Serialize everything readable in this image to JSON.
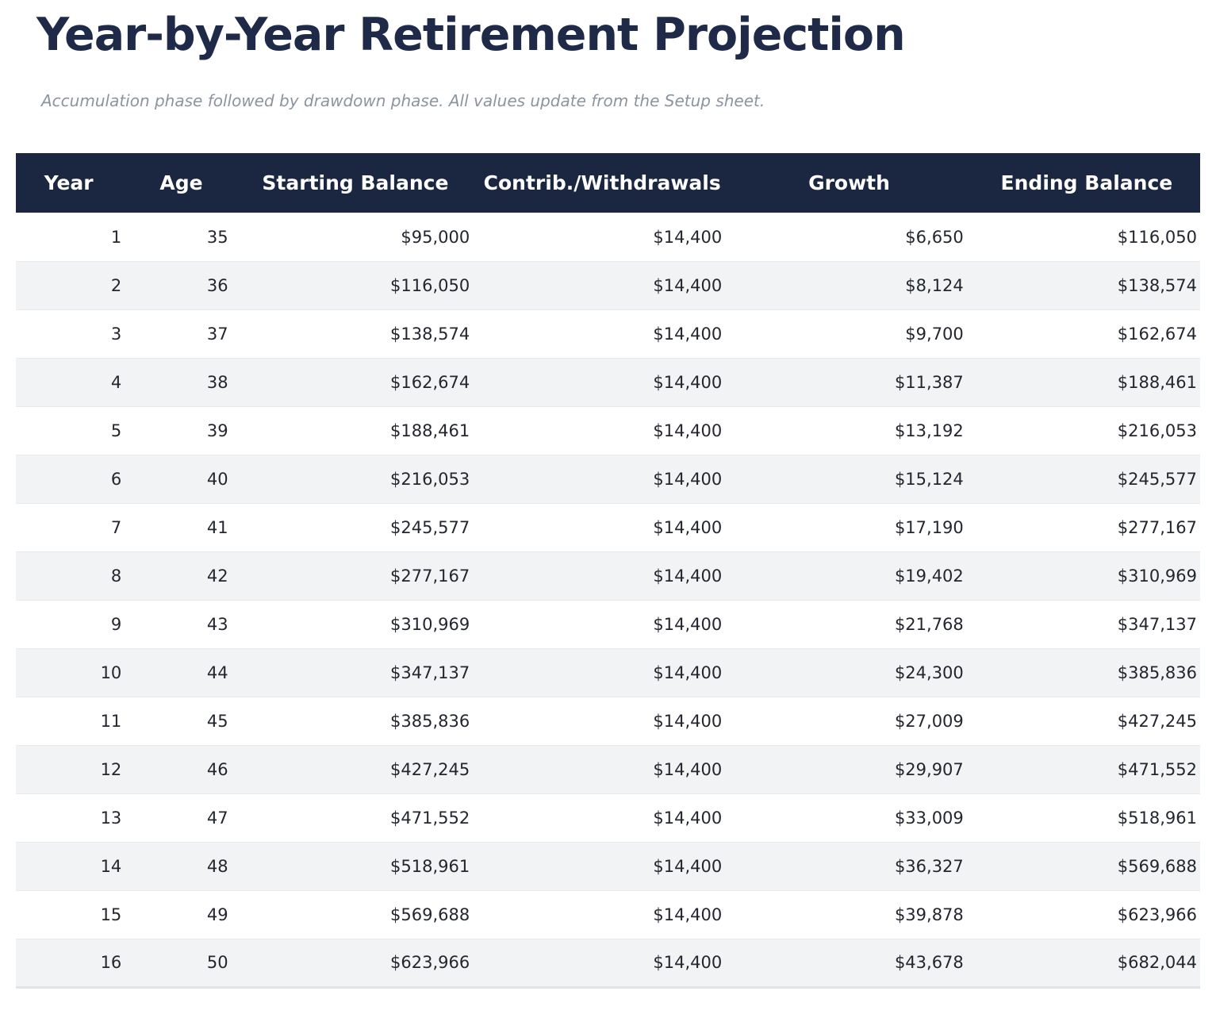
{
  "page": {
    "title": "Year-by-Year Retirement Projection",
    "subtitle": "Accumulation phase followed by drawdown phase. All values update from the Setup sheet."
  },
  "table": {
    "columns": [
      "Year",
      "Age",
      "Starting Balance",
      "Contrib./Withdrawals",
      "Growth",
      "Ending Balance"
    ],
    "rows": [
      [
        "1",
        "35",
        "$95,000",
        "$14,400",
        "$6,650",
        "$116,050"
      ],
      [
        "2",
        "36",
        "$116,050",
        "$14,400",
        "$8,124",
        "$138,574"
      ],
      [
        "3",
        "37",
        "$138,574",
        "$14,400",
        "$9,700",
        "$162,674"
      ],
      [
        "4",
        "38",
        "$162,674",
        "$14,400",
        "$11,387",
        "$188,461"
      ],
      [
        "5",
        "39",
        "$188,461",
        "$14,400",
        "$13,192",
        "$216,053"
      ],
      [
        "6",
        "40",
        "$216,053",
        "$14,400",
        "$15,124",
        "$245,577"
      ],
      [
        "7",
        "41",
        "$245,577",
        "$14,400",
        "$17,190",
        "$277,167"
      ],
      [
        "8",
        "42",
        "$277,167",
        "$14,400",
        "$19,402",
        "$310,969"
      ],
      [
        "9",
        "43",
        "$310,969",
        "$14,400",
        "$21,768",
        "$347,137"
      ],
      [
        "10",
        "44",
        "$347,137",
        "$14,400",
        "$24,300",
        "$385,836"
      ],
      [
        "11",
        "45",
        "$385,836",
        "$14,400",
        "$27,009",
        "$427,245"
      ],
      [
        "12",
        "46",
        "$427,245",
        "$14,400",
        "$29,907",
        "$471,552"
      ],
      [
        "13",
        "47",
        "$471,552",
        "$14,400",
        "$33,009",
        "$518,961"
      ],
      [
        "14",
        "48",
        "$518,961",
        "$14,400",
        "$36,327",
        "$569,688"
      ],
      [
        "15",
        "49",
        "$569,688",
        "$14,400",
        "$39,878",
        "$623,966"
      ],
      [
        "16",
        "50",
        "$623,966",
        "$14,400",
        "$43,678",
        "$682,044"
      ]
    ]
  },
  "colors": {
    "header_bg": "#1b2640",
    "title_color": "#1e2a48",
    "subtitle_color": "#8c949e",
    "row_alt_bg": "#f2f3f5",
    "row_border": "#e9eaee",
    "table_end_border": "#e2e3e8"
  }
}
